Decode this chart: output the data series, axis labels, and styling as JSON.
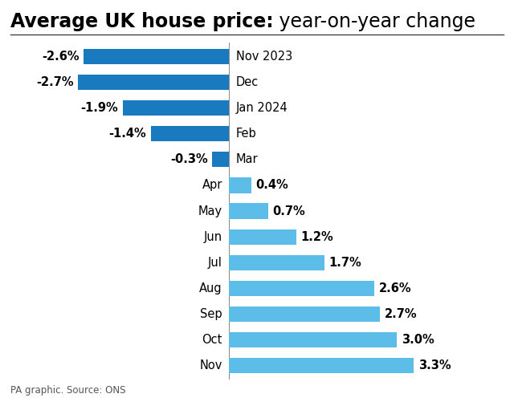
{
  "months": [
    "Nov 2023",
    "Dec",
    "Jan 2024",
    "Feb",
    "Mar",
    "Apr",
    "May",
    "Jun",
    "Jul",
    "Aug",
    "Sep",
    "Oct",
    "Nov"
  ],
  "values": [
    -2.6,
    -2.7,
    -1.9,
    -1.4,
    -0.3,
    0.4,
    0.7,
    1.2,
    1.7,
    2.6,
    2.7,
    3.0,
    3.3
  ],
  "labels": [
    "-2.6%",
    "-2.7%",
    "-1.9%",
    "-1.4%",
    "-0.3%",
    "0.4%",
    "0.7%",
    "1.2%",
    "1.7%",
    "2.6%",
    "2.7%",
    "3.0%",
    "3.3%"
  ],
  "neg_color": "#1a7abf",
  "pos_color": "#5bbde8",
  "title_bold": "Average UK house price:",
  "title_regular": " year-on-year change",
  "footnote": "PA graphic. Source: ONS",
  "xlim": [
    -4.0,
    5.0
  ],
  "bar_height": 0.6,
  "title_fontsize": 17,
  "label_fontsize": 10.5,
  "month_fontsize": 10.5,
  "footnote_fontsize": 8.5,
  "background_color": "#ffffff"
}
